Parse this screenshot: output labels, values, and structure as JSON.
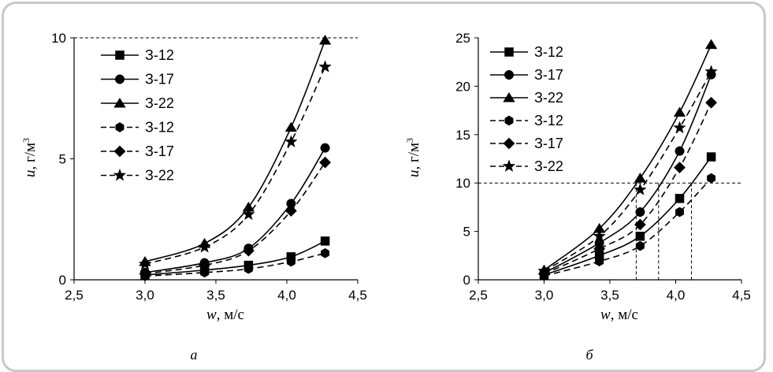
{
  "chart_data": [
    {
      "type": "line",
      "panel_label": "а",
      "xlabel_var": "w",
      "xlabel_unit": ", м/с",
      "ylabel_var": "u",
      "ylabel_unit": ", г/м",
      "ylabel_sup": "3",
      "xlim": [
        2.5,
        4.5
      ],
      "ylim": [
        0,
        10
      ],
      "xticks": [
        2.5,
        3.0,
        3.5,
        4.0,
        4.5
      ],
      "xtick_labels": [
        "2,5",
        "3,0",
        "3,5",
        "4,0",
        "4,5"
      ],
      "yticks": [
        0,
        5,
        10
      ],
      "ytick_labels": [
        "0",
        "5",
        "10"
      ],
      "reference_lines": [
        {
          "y": 10,
          "x_from": 2.5,
          "x_to": 4.5
        }
      ],
      "legend_position": "top-left",
      "series": [
        {
          "name": "З-12",
          "marker": "square",
          "style": "solid",
          "x": [
            3.0,
            3.42,
            3.73,
            4.03,
            4.27
          ],
          "y": [
            0.2,
            0.4,
            0.6,
            0.95,
            1.6
          ]
        },
        {
          "name": "З-17",
          "marker": "circle",
          "style": "solid",
          "x": [
            3.0,
            3.42,
            3.73,
            4.03,
            4.27
          ],
          "y": [
            0.3,
            0.7,
            1.3,
            3.15,
            5.45
          ]
        },
        {
          "name": "З-22",
          "marker": "triangle",
          "style": "solid",
          "x": [
            3.0,
            3.42,
            3.73,
            4.03,
            4.27
          ],
          "y": [
            0.75,
            1.5,
            3.0,
            6.3,
            9.9
          ]
        },
        {
          "name": "З-12",
          "marker": "hexagon",
          "style": "dashed",
          "x": [
            3.0,
            3.42,
            3.73,
            4.03,
            4.27
          ],
          "y": [
            0.15,
            0.3,
            0.45,
            0.75,
            1.1
          ]
        },
        {
          "name": "З-17",
          "marker": "diamond",
          "style": "dashed",
          "x": [
            3.0,
            3.42,
            3.73,
            4.03,
            4.27
          ],
          "y": [
            0.25,
            0.6,
            1.2,
            2.85,
            4.85
          ]
        },
        {
          "name": "З-22",
          "marker": "star",
          "style": "dashed",
          "x": [
            3.0,
            3.42,
            3.73,
            4.03,
            4.27
          ],
          "y": [
            0.65,
            1.35,
            2.7,
            5.7,
            8.8
          ]
        }
      ]
    },
    {
      "type": "line",
      "panel_label": "б",
      "xlabel_var": "w",
      "xlabel_unit": ", м/с",
      "ylabel_var": "u",
      "ylabel_unit": ", г/м",
      "ylabel_sup": "3",
      "xlim": [
        2.5,
        4.5
      ],
      "ylim": [
        0,
        25
      ],
      "xticks": [
        2.5,
        3.0,
        3.5,
        4.0,
        4.5
      ],
      "xtick_labels": [
        "2,5",
        "3,0",
        "3,5",
        "4,0",
        "4,5"
      ],
      "yticks": [
        0,
        5,
        10,
        15,
        20,
        25
      ],
      "ytick_labels": [
        "0",
        "5",
        "10",
        "15",
        "20",
        "25"
      ],
      "reference_lines": [
        {
          "y": 10,
          "x_from": 2.5,
          "x_to": 4.5
        }
      ],
      "drop_lines_x": [
        3.7,
        3.87,
        4.12
      ],
      "legend_position": "top-left",
      "series": [
        {
          "name": "З-12",
          "marker": "square",
          "style": "solid",
          "x": [
            3.0,
            3.42,
            3.73,
            4.03,
            4.27
          ],
          "y": [
            0.5,
            2.5,
            4.5,
            8.4,
            12.7
          ]
        },
        {
          "name": "З-17",
          "marker": "circle",
          "style": "solid",
          "x": [
            3.0,
            3.42,
            3.73,
            4.03,
            4.27
          ],
          "y": [
            0.7,
            3.8,
            7.0,
            13.3,
            21.2
          ]
        },
        {
          "name": "З-22",
          "marker": "triangle",
          "style": "solid",
          "x": [
            3.0,
            3.42,
            3.73,
            4.03,
            4.27
          ],
          "y": [
            1.0,
            5.3,
            10.5,
            17.3,
            24.3
          ]
        },
        {
          "name": "З-12",
          "marker": "hexagon",
          "style": "dashed",
          "x": [
            3.0,
            3.42,
            3.73,
            4.03,
            4.27
          ],
          "y": [
            0.4,
            1.9,
            3.5,
            7.0,
            10.5
          ]
        },
        {
          "name": "З-17",
          "marker": "diamond",
          "style": "dashed",
          "x": [
            3.0,
            3.42,
            3.73,
            4.03,
            4.27
          ],
          "y": [
            0.6,
            3.2,
            5.7,
            11.6,
            18.3
          ]
        },
        {
          "name": "З-22",
          "marker": "star",
          "style": "dashed",
          "x": [
            3.0,
            3.42,
            3.73,
            4.03,
            4.27
          ],
          "y": [
            0.9,
            4.5,
            9.3,
            15.7,
            21.5
          ]
        }
      ]
    }
  ]
}
